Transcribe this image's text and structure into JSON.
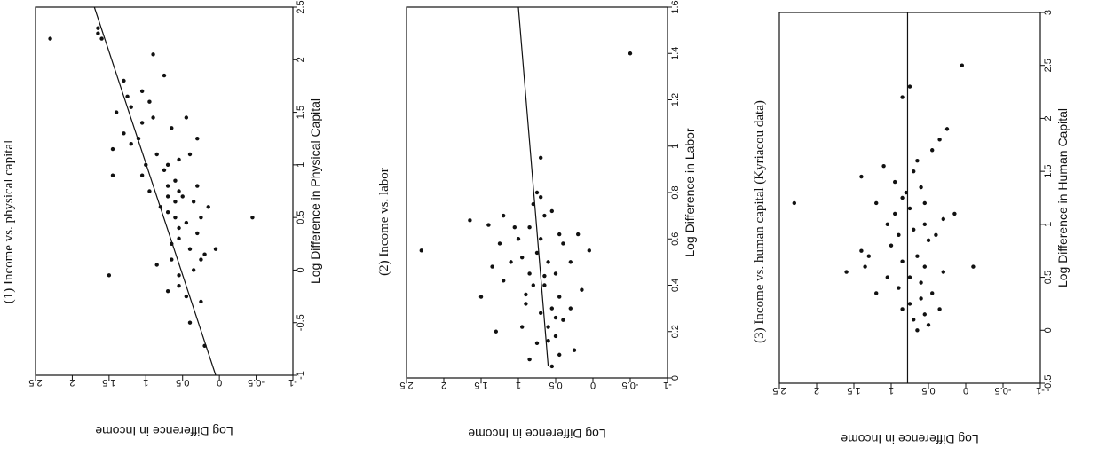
{
  "figure": {
    "orientation": "rotated 90 degrees counter-clockwise"
  },
  "chart_data": [
    {
      "type": "scatter",
      "title": "(1) Income vs. physical capital",
      "xlabel": "Log Difference in Physical Capital",
      "ylabel": "Log Difference in Income",
      "xlim": [
        -1,
        2.5
      ],
      "ylim": [
        -1,
        2.5
      ],
      "xticks": [
        "-1",
        "-0.5",
        "0",
        "0.5",
        "1",
        "1.5",
        "2",
        "2.5"
      ],
      "yticks": [
        "-1",
        "-0.5",
        "0",
        "0.5",
        "1",
        "1.5",
        "2",
        "2.5"
      ],
      "fit_line": [
        [
          -1,
          0.05
        ],
        [
          2.5,
          1.7
        ]
      ],
      "points": [
        [
          -0.72,
          0.2
        ],
        [
          -0.5,
          0.4
        ],
        [
          -0.3,
          0.25
        ],
        [
          -0.25,
          0.45
        ],
        [
          -0.2,
          0.7
        ],
        [
          -0.15,
          0.55
        ],
        [
          -0.05,
          1.5
        ],
        [
          -0.05,
          0.55
        ],
        [
          0.0,
          0.35
        ],
        [
          0.05,
          0.85
        ],
        [
          0.1,
          0.65
        ],
        [
          0.1,
          0.25
        ],
        [
          0.15,
          0.2
        ],
        [
          0.2,
          0.05
        ],
        [
          0.2,
          0.4
        ],
        [
          0.25,
          0.65
        ],
        [
          0.3,
          0.55
        ],
        [
          0.35,
          0.3
        ],
        [
          0.4,
          0.55
        ],
        [
          0.45,
          0.45
        ],
        [
          0.5,
          0.6
        ],
        [
          0.5,
          0.25
        ],
        [
          0.5,
          -0.45
        ],
        [
          0.55,
          0.7
        ],
        [
          0.6,
          0.8
        ],
        [
          0.65,
          0.6
        ],
        [
          0.7,
          0.7
        ],
        [
          0.7,
          0.5
        ],
        [
          0.75,
          0.55
        ],
        [
          0.75,
          0.95
        ],
        [
          0.8,
          0.3
        ],
        [
          0.8,
          0.7
        ],
        [
          0.85,
          0.6
        ],
        [
          0.9,
          1.45
        ],
        [
          0.9,
          1.05
        ],
        [
          0.95,
          0.75
        ],
        [
          1.0,
          0.7
        ],
        [
          1.0,
          1.0
        ],
        [
          1.05,
          0.55
        ],
        [
          1.1,
          0.85
        ],
        [
          1.15,
          1.45
        ],
        [
          1.2,
          1.2
        ],
        [
          1.25,
          1.1
        ],
        [
          1.3,
          1.3
        ],
        [
          1.35,
          0.65
        ],
        [
          1.4,
          1.05
        ],
        [
          1.45,
          0.9
        ],
        [
          1.5,
          1.4
        ],
        [
          1.55,
          1.2
        ],
        [
          1.6,
          0.95
        ],
        [
          1.65,
          1.25
        ],
        [
          1.7,
          1.05
        ],
        [
          1.8,
          1.3
        ],
        [
          1.85,
          0.75
        ],
        [
          0.65,
          0.35
        ],
        [
          0.6,
          0.15
        ],
        [
          1.1,
          0.4
        ],
        [
          1.25,
          0.3
        ],
        [
          1.45,
          0.45
        ],
        [
          2.05,
          0.9
        ],
        [
          2.2,
          1.6
        ],
        [
          2.2,
          2.3
        ],
        [
          2.25,
          1.65
        ],
        [
          2.3,
          1.65
        ]
      ]
    },
    {
      "type": "scatter",
      "title": "(2) Income vs. labor",
      "xlabel": "Log Difference in Labor",
      "ylabel": "Log Difference in Income",
      "xlim": [
        0,
        1.6
      ],
      "ylim": [
        -1,
        2.5
      ],
      "xticks": [
        "0",
        "0.2",
        "0.4",
        "0.6",
        "0.8",
        "1",
        "1.2",
        "1.4",
        "1.6"
      ],
      "yticks": [
        "-1",
        "-0.5",
        "0",
        "0.5",
        "1",
        "1.5",
        "2",
        "2.5"
      ],
      "fit_line": [
        [
          0.05,
          0.6
        ],
        [
          1.6,
          1.0
        ]
      ],
      "points": [
        [
          0.05,
          0.55
        ],
        [
          0.08,
          0.85
        ],
        [
          0.1,
          0.45
        ],
        [
          0.12,
          0.25
        ],
        [
          0.15,
          0.75
        ],
        [
          0.18,
          0.5
        ],
        [
          0.2,
          1.3
        ],
        [
          0.22,
          0.95
        ],
        [
          0.25,
          0.4
        ],
        [
          0.28,
          0.7
        ],
        [
          0.3,
          0.55
        ],
        [
          0.32,
          0.9
        ],
        [
          0.35,
          1.5
        ],
        [
          0.35,
          0.45
        ],
        [
          0.38,
          0.15
        ],
        [
          0.4,
          0.65
        ],
        [
          0.42,
          1.2
        ],
        [
          0.45,
          0.85
        ],
        [
          0.45,
          0.5
        ],
        [
          0.48,
          1.35
        ],
        [
          0.5,
          0.6
        ],
        [
          0.5,
          0.3
        ],
        [
          0.52,
          0.95
        ],
        [
          0.55,
          2.3
        ],
        [
          0.55,
          0.05
        ],
        [
          0.58,
          1.25
        ],
        [
          0.6,
          0.7
        ],
        [
          0.6,
          1.0
        ],
        [
          0.62,
          0.45
        ],
        [
          0.65,
          0.85
        ],
        [
          0.65,
          1.05
        ],
        [
          0.68,
          1.65
        ],
        [
          0.7,
          0.65
        ],
        [
          0.7,
          1.2
        ],
        [
          0.72,
          0.55
        ],
        [
          0.75,
          0.8
        ],
        [
          0.78,
          0.7
        ],
        [
          0.8,
          0.75
        ],
        [
          0.22,
          0.6
        ],
        [
          0.3,
          0.3
        ],
        [
          0.4,
          0.8
        ],
        [
          0.5,
          1.1
        ],
        [
          0.58,
          0.4
        ],
        [
          0.62,
          0.2
        ],
        [
          0.66,
          1.4
        ],
        [
          0.54,
          0.75
        ],
        [
          0.44,
          0.65
        ],
        [
          0.36,
          0.9
        ],
        [
          0.26,
          0.5
        ],
        [
          0.16,
          0.6
        ],
        [
          0.95,
          0.7
        ],
        [
          1.4,
          -0.5
        ]
      ]
    },
    {
      "type": "scatter",
      "title": "(3) Income vs. human capital (Kyriacou data)",
      "xlabel": "Log Difference in Human Capital",
      "ylabel": "Log Difference in Income",
      "xlim": [
        -0.5,
        3
      ],
      "ylim": [
        -1,
        2.5
      ],
      "xticks": [
        "-0.5",
        "0",
        "0.5",
        "1",
        "1.5",
        "2",
        "2.5",
        "3"
      ],
      "yticks": [
        "-1",
        "-0.5",
        "0",
        "0.5",
        "1",
        "1.5",
        "2",
        "2.5"
      ],
      "fit_line": [
        [
          -0.5,
          0.78
        ],
        [
          3,
          0.78
        ]
      ],
      "points": [
        [
          0.0,
          0.65
        ],
        [
          0.05,
          0.5
        ],
        [
          0.1,
          0.7
        ],
        [
          0.15,
          0.55
        ],
        [
          0.2,
          0.85
        ],
        [
          0.2,
          0.35
        ],
        [
          0.25,
          0.75
        ],
        [
          0.3,
          0.6
        ],
        [
          0.35,
          1.2
        ],
        [
          0.35,
          0.45
        ],
        [
          0.4,
          0.9
        ],
        [
          0.45,
          0.6
        ],
        [
          0.5,
          1.05
        ],
        [
          0.5,
          0.75
        ],
        [
          0.55,
          1.6
        ],
        [
          0.55,
          0.3
        ],
        [
          0.6,
          1.35
        ],
        [
          0.6,
          0.55
        ],
        [
          0.65,
          0.85
        ],
        [
          0.7,
          1.3
        ],
        [
          0.7,
          0.65
        ],
        [
          0.75,
          1.4
        ],
        [
          0.8,
          1.0
        ],
        [
          0.85,
          0.5
        ],
        [
          0.9,
          0.9
        ],
        [
          0.9,
          0.4
        ],
        [
          0.95,
          0.7
        ],
        [
          1.0,
          1.05
        ],
        [
          1.0,
          0.55
        ],
        [
          1.05,
          0.3
        ],
        [
          1.1,
          0.95
        ],
        [
          1.1,
          0.15
        ],
        [
          1.15,
          0.75
        ],
        [
          1.2,
          1.2
        ],
        [
          1.2,
          0.55
        ],
        [
          1.25,
          0.85
        ],
        [
          1.3,
          0.8
        ],
        [
          1.35,
          0.6
        ],
        [
          1.4,
          0.95
        ],
        [
          1.45,
          1.4
        ],
        [
          1.5,
          0.7
        ],
        [
          1.55,
          1.1
        ],
        [
          1.6,
          0.65
        ],
        [
          1.7,
          0.45
        ],
        [
          1.8,
          0.35
        ],
        [
          1.9,
          0.25
        ],
        [
          2.2,
          0.85
        ],
        [
          2.3,
          0.75
        ],
        [
          2.5,
          0.05
        ],
        [
          0.6,
          -0.1
        ],
        [
          1.2,
          2.3
        ]
      ]
    }
  ]
}
